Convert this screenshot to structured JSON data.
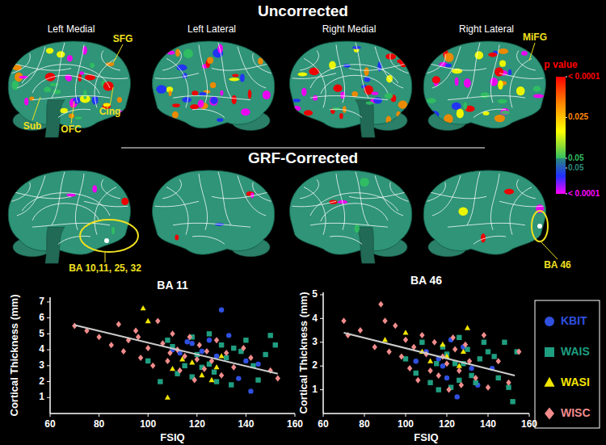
{
  "figure": {
    "titles": [
      "Uncorrected",
      "GRF-Corrected"
    ],
    "views": [
      "Left Medial",
      "Left Lateral",
      "Right Medial",
      "Right Lateral"
    ],
    "uncorrected_labels": [
      "SFG",
      "Sub",
      "OFC",
      "Cing",
      "MiFG"
    ],
    "corrected_labels": [
      "BA 10,11, 25, 32",
      "BA 46"
    ],
    "colorbar": {
      "title": "p value",
      "positive": {
        "ticks": [
          {
            "value": 0.0001,
            "label": "< 0.0001"
          },
          {
            "value": 0.025,
            "label": "0.025"
          },
          {
            "value": 0.05,
            "label": "0.05"
          }
        ],
        "colors": [
          "#ff0000",
          "#ff8800",
          "#ffff00",
          "#30c060"
        ]
      },
      "negative": {
        "ticks": [
          {
            "value": 0.05,
            "label": "0.05"
          },
          {
            "value": 0.0001,
            "label": "< 0.0001"
          }
        ],
        "colors": [
          "#2a8a7a",
          "#2030ff",
          "#ff00ff"
        ]
      }
    }
  },
  "chart_data": [
    {
      "type": "scatter",
      "title": "BA 11",
      "x_label": "FSIQ",
      "y_label": "Cortical Thickness (mm)",
      "xlim": [
        60,
        160
      ],
      "xticks": [
        60,
        80,
        100,
        120,
        140,
        160
      ],
      "ylim": [
        0,
        7.3
      ],
      "yticks": [
        1,
        2,
        3,
        4,
        5,
        6,
        7
      ],
      "legend": "right",
      "series": [
        {
          "name": "KBIT",
          "color": "#3050e0",
          "marker": "circle",
          "x": [
            118,
            122,
            125,
            130,
            133,
            140,
            142,
            113,
            116,
            128,
            137,
            145,
            110
          ],
          "values": [
            4.4,
            3.9,
            4.6,
            6.5,
            4.9,
            3.3,
            1.4,
            3.8,
            4.5,
            3.6,
            2.2,
            3.1,
            4.0
          ]
        },
        {
          "name": "WAIS",
          "color": "#1f9e80",
          "marker": "square",
          "x": [
            100,
            105,
            108,
            110,
            112,
            115,
            118,
            120,
            122,
            125,
            127,
            128,
            130,
            132,
            134,
            135,
            138,
            140,
            143,
            145,
            148,
            150,
            152,
            125,
            118
          ],
          "values": [
            3.3,
            2.0,
            4.6,
            4.2,
            2.5,
            3.0,
            4.8,
            3.7,
            2.9,
            3.1,
            2.6,
            2.0,
            4.3,
            3.5,
            1.8,
            4.1,
            3.9,
            4.6,
            3.0,
            2.1,
            3.7,
            4.9,
            4.3,
            5.0,
            2.3
          ]
        },
        {
          "name": "WASI",
          "color": "#f2e600",
          "marker": "triangle",
          "x": [
            98,
            100,
            108,
            110,
            118,
            122,
            126,
            128,
            130,
            114
          ],
          "values": [
            6.6,
            5.8,
            1.0,
            2.8,
            3.2,
            2.4,
            2.1,
            2.9,
            3.6,
            3.4
          ]
        },
        {
          "name": "WISC",
          "color": "#f28c8c",
          "marker": "diamond",
          "x": [
            70,
            75,
            80,
            85,
            88,
            90,
            92,
            95,
            97,
            100,
            102,
            104,
            106,
            108,
            110,
            112,
            113,
            115,
            117,
            119,
            120,
            121,
            123,
            124,
            126,
            128,
            130,
            132,
            135,
            139,
            142,
            150,
            153,
            109,
            96
          ],
          "values": [
            5.5,
            5.2,
            4.8,
            4.3,
            5.6,
            3.9,
            4.6,
            5.2,
            3.5,
            4.1,
            3.0,
            5.8,
            4.4,
            3.3,
            5.0,
            4.0,
            2.7,
            3.6,
            4.8,
            2.1,
            3.4,
            4.3,
            2.8,
            3.9,
            3.3,
            4.6,
            2.4,
            3.8,
            2.9,
            4.1,
            3.5,
            2.7,
            2.2,
            3.8,
            4.8
          ]
        }
      ],
      "trendline": {
        "x": [
          70,
          153
        ],
        "values": [
          5.55,
          2.5
        ],
        "color": "#cccccc"
      }
    },
    {
      "type": "scatter",
      "title": "BA 46",
      "x_label": "FSIQ",
      "y_label": "Cortical Thickness (mm)",
      "xlim": [
        60,
        160
      ],
      "xticks": [
        60,
        80,
        100,
        120,
        140,
        160
      ],
      "ylim": [
        0,
        5.1
      ],
      "yticks": [
        1,
        2,
        3,
        4,
        5
      ],
      "series": [
        {
          "color": "#3050e0",
          "marker": "circle",
          "x": [
            105,
            110,
            116,
            120,
            122,
            125,
            128,
            132,
            142,
            118,
            135
          ],
          "values": [
            2.2,
            2.6,
            2.3,
            1.5,
            3.1,
            0.7,
            2.8,
            1.9,
            1.9,
            2.0,
            1.2
          ]
        },
        {
          "color": "#1f9e80",
          "marker": "square",
          "x": [
            100,
            105,
            108,
            112,
            115,
            118,
            120,
            122,
            124,
            126,
            128,
            130,
            132,
            134,
            136,
            138,
            140,
            143,
            145,
            148,
            150,
            152,
            154,
            126,
            116
          ],
          "values": [
            2.3,
            1.7,
            3.0,
            1.3,
            2.1,
            2.8,
            2.5,
            1.1,
            2.1,
            3.2,
            2.1,
            2.7,
            1.6,
            1.3,
            2.3,
            3.0,
            2.6,
            2.4,
            1.5,
            3.0,
            1.1,
            0.5,
            2.6,
            1.4,
            1.0
          ]
        },
        {
          "color": "#f2e600",
          "marker": "triangle",
          "x": [
            90,
            100,
            108,
            112,
            118,
            120,
            126,
            128,
            130
          ],
          "values": [
            3.1,
            3.4,
            2.6,
            2.2,
            2.9,
            2.4,
            2.0,
            2.6,
            3.6
          ]
        },
        {
          "color": "#f28c8c",
          "marker": "diamond",
          "x": [
            70,
            72,
            78,
            85,
            88,
            90,
            92,
            95,
            98,
            100,
            102,
            104,
            106,
            108,
            110,
            112,
            114,
            116,
            118,
            120,
            121,
            123,
            124,
            126,
            127,
            129,
            131,
            134,
            138,
            140,
            145,
            150,
            155
          ],
          "values": [
            3.9,
            3.3,
            3.5,
            2.8,
            4.6,
            3.9,
            2.6,
            3.7,
            2.4,
            3.1,
            1.9,
            2.8,
            1.4,
            3.3,
            2.5,
            1.8,
            3.0,
            1.6,
            2.4,
            2.1,
            1.0,
            3.2,
            2.7,
            1.8,
            1.2,
            2.9,
            2.2,
            1.5,
            3.3,
            1.1,
            2.2,
            1.3,
            2.6
          ]
        }
      ],
      "trendline": {
        "x": [
          70,
          153
        ],
        "values": [
          3.4,
          1.6
        ],
        "color": "#cccccc"
      }
    }
  ]
}
